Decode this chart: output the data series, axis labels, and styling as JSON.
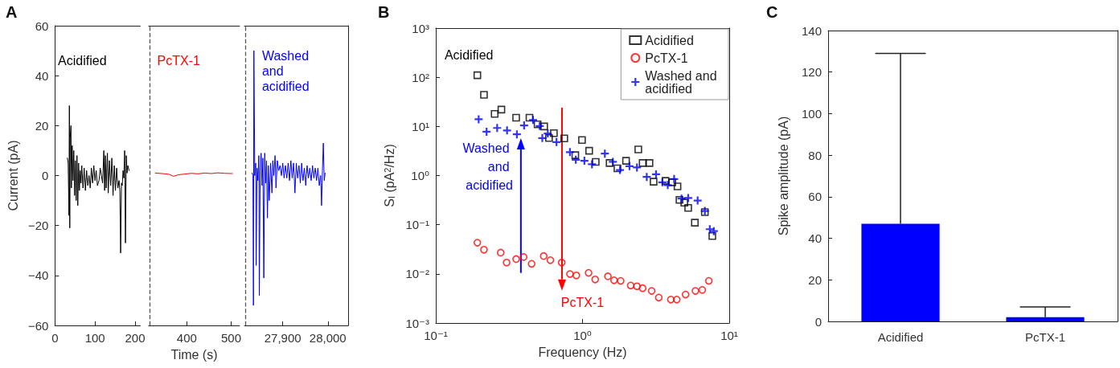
{
  "chart_data": [
    {
      "type": "line",
      "title": "A",
      "ylabel": "Current (pA)",
      "marker": "none",
      "xlim": [
        0,
        213
      ],
      "xticks": [
        0,
        100,
        200
      ],
      "ylim": [
        -60,
        60
      ],
      "yticks": [
        {
          "value": -60,
          "label": "−60"
        },
        {
          "value": -40,
          "label": "−40"
        },
        {
          "value": -20,
          "label": "−20"
        },
        0,
        20,
        40,
        60
      ],
      "annotations": [
        "Acidified"
      ],
      "x": [
        31,
        33,
        35,
        36,
        37,
        38,
        40,
        41,
        43,
        45,
        47,
        49,
        51,
        53,
        55,
        57,
        59,
        61,
        63,
        65,
        67,
        70,
        73,
        76,
        79,
        82,
        85,
        88,
        91,
        94,
        97,
        100,
        103,
        106,
        110,
        113,
        116,
        119,
        122,
        124,
        126,
        128,
        131,
        133,
        136,
        139,
        142,
        145,
        148,
        151,
        154,
        157,
        160,
        162,
        164,
        166,
        168,
        170,
        172,
        174,
        176,
        178,
        180,
        182,
        185
      ],
      "series": [
        {
          "color": "#000000",
          "values": [
            7,
            5,
            -16,
            28,
            -21,
            15,
            20,
            -5,
            12,
            -2,
            10,
            -8,
            6,
            -10,
            8,
            -12,
            5,
            -6,
            2,
            -3,
            4,
            -5,
            3,
            -6,
            2,
            -4,
            0,
            -5,
            3,
            -3,
            4,
            -2,
            2,
            -4,
            -2,
            3,
            0,
            -3,
            10,
            -6,
            8,
            -5,
            9,
            -7,
            6,
            -4,
            7,
            -8,
            4,
            -6,
            3,
            -5,
            -2,
            -6,
            -31,
            -3,
            -4,
            2,
            -1,
            10,
            -27,
            8,
            1,
            4,
            2
          ]
        }
      ]
    },
    {
      "type": "line",
      "xlabel": "Time (s)",
      "marker": "none",
      "xlim": [
        314,
        519
      ],
      "xticks": [
        400,
        500
      ],
      "ylim": [
        -60,
        60
      ],
      "tick_labels": "x",
      "annotations": [
        "PcTX-1"
      ],
      "ref_lines": [
        {
          "axis": "x",
          "value": 317,
          "line_style": "dashed",
          "color": "#555555"
        }
      ],
      "x": [
        329,
        345,
        360,
        370,
        380,
        395,
        410,
        425,
        440,
        455,
        470,
        485,
        503
      ],
      "series": [
        {
          "color": "#ff0000",
          "values": [
            1,
            0.8,
            0.5,
            -0.3,
            0.3,
            0.6,
            0.9,
            0.7,
            1,
            0.8,
            1.1,
            0.9,
            0.8
          ]
        }
      ]
    },
    {
      "type": "line",
      "marker": "none",
      "xlim": [
        27815,
        28045
      ],
      "xticks": [
        {
          "value": 27900,
          "label": "27,900"
        },
        {
          "value": 28000,
          "label": "28,000"
        }
      ],
      "ylim": [
        -60,
        60
      ],
      "tick_labels": "x",
      "annotations": [
        "Washed and acidified"
      ],
      "ref_lines": [
        {
          "axis": "x",
          "value": 27818,
          "line_style": "dashed",
          "color": "#555555"
        }
      ],
      "x": [
        27832,
        27834,
        27835,
        27836,
        27838,
        27840,
        27841,
        27843,
        27845,
        27847,
        27848,
        27850,
        27852,
        27854,
        27856,
        27858,
        27860,
        27862,
        27864,
        27866,
        27868,
        27870,
        27873,
        27876,
        27878,
        27880,
        27883,
        27885,
        27888,
        27891,
        27894,
        27897,
        27900,
        27903,
        27906,
        27909,
        27912,
        27915,
        27918,
        27921,
        27924,
        27927,
        27930,
        27933,
        27936,
        27939,
        27942,
        27945,
        27948,
        27951,
        27954,
        27957,
        27960,
        27963,
        27966,
        27969,
        27972,
        27975,
        27978,
        27981,
        27984,
        27986,
        27988,
        27990,
        27992,
        27994
      ],
      "series": [
        {
          "color": "#0000ff",
          "values": [
            1,
            0,
            -52,
            50,
            0,
            5,
            -36,
            3,
            -2,
            8,
            -48,
            2,
            9,
            -4,
            7,
            -41,
            9,
            -3,
            6,
            -17,
            4,
            -10,
            5,
            -7,
            6,
            0,
            8,
            -5,
            6,
            2,
            4,
            0,
            5,
            -1,
            4,
            -1,
            5,
            -2,
            6,
            -1,
            5,
            -7,
            5,
            -1,
            4,
            -3,
            5,
            -2,
            3,
            -4,
            4,
            -1,
            3,
            -2,
            4,
            -1,
            3,
            -2,
            3,
            -4,
            0,
            -12,
            2,
            13,
            -2,
            1
          ]
        }
      ]
    },
    {
      "type": "scatter",
      "title": "B",
      "xlabel": "Frequency (Hz)",
      "ylabel": "S$_{I}$ (pA$^{2}$/Hz)",
      "log": "xy",
      "legend": "top right",
      "xlim": [
        0.1,
        10
      ],
      "xticks": [
        {
          "value": 0.1,
          "label": "10⁻¹"
        },
        {
          "value": 1,
          "label": "10⁰"
        },
        {
          "value": 10,
          "label": "10¹"
        }
      ],
      "ylim": [
        0.001,
        1000
      ],
      "yticks": [
        {
          "value": 0.001,
          "label": "10⁻³"
        },
        {
          "value": 0.01,
          "label": "10⁻²"
        },
        {
          "value": 0.1,
          "label": "10⁻¹"
        },
        {
          "value": 1,
          "label": "10⁰"
        },
        {
          "value": 10,
          "label": "10¹"
        },
        {
          "value": 100,
          "label": "10²"
        },
        {
          "value": 1000,
          "label": "10³"
        }
      ],
      "annotations": [
        "Acidified",
        "PcTX-1",
        "Washed and acidified"
      ],
      "series": [
        {
          "name": "Acidified",
          "color": "#000000",
          "marker": "square",
          "x": [
            0.192,
            0.213,
            0.252,
            0.28,
            0.353,
            0.435,
            0.494,
            0.548,
            0.591,
            0.638,
            0.751,
            0.893,
            0.992,
            1.11,
            1.23,
            1.53,
            1.73,
            1.98,
            2.4,
            2.57,
            2.86,
            3.05,
            3.68,
            4.09,
            4.44,
            4.58,
            4.94,
            5.25,
            5.83,
            6.82,
            7.67
          ],
          "values": [
            110,
            44,
            18,
            22,
            15,
            15,
            11,
            10,
            5.8,
            7.3,
            5.7,
            2.6,
            5.3,
            3.2,
            1.9,
            1.8,
            1.4,
            2,
            3.4,
            1.8,
            1.8,
            0.75,
            0.78,
            0.73,
            0.6,
            0.32,
            0.28,
            0.22,
            0.11,
            0.18,
            0.059
          ]
        },
        {
          "name": "PcTX-1",
          "color": "#ff0000",
          "marker": "circle",
          "x": [
            0.192,
            0.213,
            0.277,
            0.304,
            0.353,
            0.397,
            0.45,
            0.544,
            0.604,
            0.721,
            0.821,
            0.908,
            1.1,
            1.22,
            1.49,
            1.64,
            1.82,
            2.13,
            2.35,
            2.57,
            2.96,
            3.31,
            4,
            4.39,
            5.04,
            5.88,
            6.55,
            7.26
          ],
          "values": [
            0.043,
            0.031,
            0.027,
            0.017,
            0.02,
            0.022,
            0.016,
            0.023,
            0.019,
            0.017,
            0.0099,
            0.0093,
            0.0105,
            0.0077,
            0.0089,
            0.0074,
            0.0072,
            0.0058,
            0.0056,
            0.0051,
            0.0045,
            0.0033,
            0.003,
            0.003,
            0.0038,
            0.0045,
            0.0047,
            0.0072
          ]
        },
        {
          "name": "Washed and acidified",
          "color": "#0000ff",
          "marker": "cross",
          "x": [
            0.196,
            0.222,
            0.262,
            0.306,
            0.357,
            0.4,
            0.46,
            0.511,
            0.532,
            0.58,
            0.665,
            0.821,
            0.9,
            1.03,
            1.16,
            1.42,
            1.61,
            1.8,
            2.09,
            2.35,
            2.74,
            3.17,
            3.5,
            3.81,
            4.21,
            4.73,
            5.25,
            6.09,
            6.82,
            7.37,
            7.85
          ],
          "values": [
            14,
            7.8,
            9.3,
            8.3,
            6.9,
            10.5,
            13.5,
            10.2,
            5.8,
            7.2,
            4.8,
            3,
            2.1,
            2,
            1.7,
            2.8,
            1.9,
            1.3,
            1.55,
            1.46,
            0.94,
            1.06,
            0.73,
            0.64,
            0.85,
            0.34,
            0.35,
            0.31,
            0.19,
            0.081,
            0.074
          ]
        }
      ]
    },
    {
      "type": "bar",
      "title": "C",
      "ylabel": "Spike amplitude (pA)",
      "categories": [
        "Acidified",
        "PcTX-1"
      ],
      "values": [
        47,
        2
      ],
      "color": "#0000ff",
      "errors": [
        [
          47,
          129
        ],
        [
          2,
          7
        ]
      ],
      "ylim": [
        0,
        140
      ],
      "yticks": [
        0,
        20,
        40,
        60,
        80,
        100,
        120,
        140
      ]
    }
  ]
}
